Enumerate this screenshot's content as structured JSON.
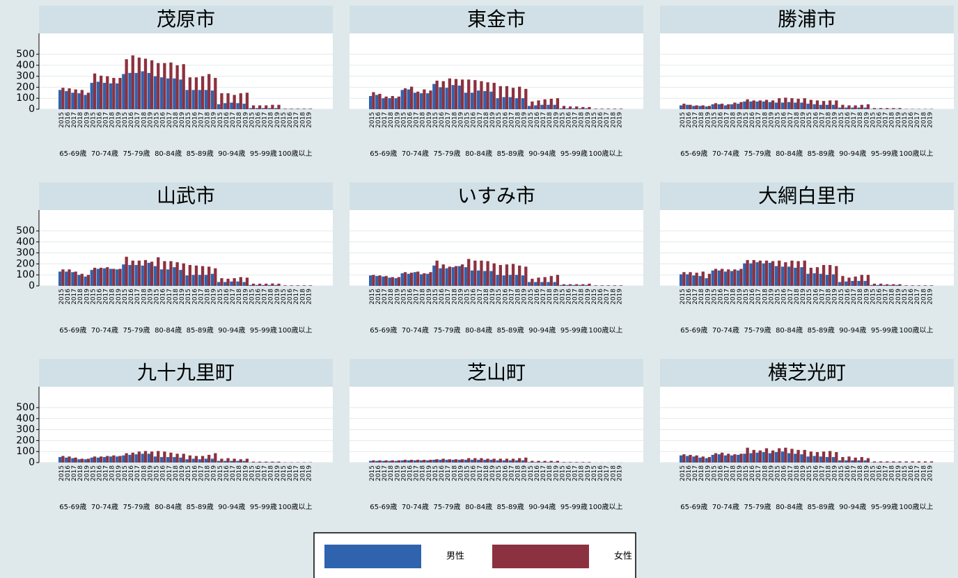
{
  "chart_data": [
    {
      "type": "bar",
      "title": "茂原市",
      "groups": [
        "65-69歳",
        "70-74歳",
        "75-79歳",
        "80-84歳",
        "85-89歳",
        "90-94歳",
        "95-99歳",
        "100歳以上"
      ],
      "years": [
        "2015",
        "2016",
        "2017",
        "2018",
        "2019"
      ],
      "ylim": [
        0,
        690
      ],
      "yticks": [
        0,
        100,
        200,
        300,
        400,
        500
      ],
      "series": [
        {
          "name": "男性",
          "color": "#2f63ad",
          "values": [
            175,
            165,
            150,
            145,
            130,
            240,
            250,
            240,
            235,
            235,
            320,
            330,
            330,
            345,
            330,
            300,
            290,
            280,
            280,
            270,
            175,
            175,
            175,
            175,
            170,
            45,
            55,
            60,
            55,
            50,
            10,
            10,
            10,
            10,
            10,
            2,
            2,
            2,
            2,
            2
          ]
        },
        {
          "name": "女性",
          "color": "#8c3140",
          "values": [
            195,
            190,
            180,
            175,
            150,
            325,
            305,
            300,
            285,
            285,
            455,
            490,
            470,
            460,
            445,
            420,
            420,
            425,
            400,
            410,
            290,
            290,
            300,
            320,
            285,
            145,
            145,
            130,
            145,
            150,
            35,
            35,
            35,
            40,
            40,
            5,
            5,
            5,
            5,
            5
          ]
        }
      ]
    },
    {
      "type": "bar",
      "title": "東金市",
      "groups": [
        "65-69歳",
        "70-74歳",
        "75-79歳",
        "80-84歳",
        "85-89歳",
        "90-94歳",
        "95-99歳",
        "100歳以上"
      ],
      "years": [
        "2015",
        "2016",
        "2017",
        "2018",
        "2019"
      ],
      "ylim": [
        0,
        690
      ],
      "yticks": [
        0,
        100,
        200,
        300,
        400,
        500
      ],
      "series": [
        {
          "name": "男性",
          "color": "#2f63ad",
          "values": [
            120,
            130,
            100,
            100,
            100,
            175,
            180,
            150,
            145,
            145,
            230,
            200,
            195,
            220,
            215,
            150,
            150,
            170,
            165,
            160,
            100,
            110,
            110,
            100,
            100,
            30,
            35,
            40,
            40,
            40,
            8,
            8,
            8,
            8,
            8,
            1,
            1,
            1,
            1,
            1
          ]
        },
        {
          "name": "女性",
          "color": "#8c3140",
          "values": [
            155,
            140,
            115,
            120,
            115,
            190,
            205,
            160,
            180,
            170,
            260,
            255,
            280,
            275,
            270,
            270,
            265,
            255,
            245,
            240,
            210,
            210,
            195,
            205,
            185,
            70,
            80,
            90,
            95,
            100,
            30,
            25,
            25,
            20,
            20,
            5,
            5,
            5,
            5,
            5
          ]
        }
      ]
    },
    {
      "type": "bar",
      "title": "勝浦市",
      "groups": [
        "65-69歳",
        "70-74歳",
        "75-79歳",
        "80-84歳",
        "85-89歳",
        "90-94歳",
        "95-99歳",
        "100歳以上"
      ],
      "years": [
        "2015",
        "2016",
        "2017",
        "2018",
        "2019"
      ],
      "ylim": [
        0,
        690
      ],
      "yticks": [
        0,
        100,
        200,
        300,
        400,
        500
      ],
      "series": [
        {
          "name": "男性",
          "color": "#2f63ad",
          "values": [
            35,
            40,
            30,
            30,
            25,
            45,
            45,
            35,
            45,
            50,
            70,
            70,
            70,
            70,
            65,
            60,
            60,
            65,
            60,
            60,
            50,
            45,
            40,
            40,
            40,
            15,
            15,
            15,
            15,
            15,
            3,
            3,
            3,
            3,
            3,
            1,
            1,
            1,
            1,
            1
          ]
        },
        {
          "name": "女性",
          "color": "#8c3140",
          "values": [
            50,
            40,
            35,
            35,
            30,
            55,
            50,
            45,
            60,
            65,
            90,
            80,
            80,
            85,
            80,
            100,
            105,
            100,
            95,
            100,
            85,
            80,
            75,
            80,
            80,
            40,
            35,
            35,
            40,
            45,
            10,
            10,
            10,
            10,
            10,
            3,
            3,
            3,
            3,
            3
          ]
        }
      ]
    },
    {
      "type": "bar",
      "title": "山武市",
      "groups": [
        "65-69歳",
        "70-74歳",
        "75-79歳",
        "80-84歳",
        "85-89歳",
        "90-94歳",
        "95-99歳",
        "100歳以上"
      ],
      "years": [
        "2015",
        "2016",
        "2017",
        "2018",
        "2019"
      ],
      "ylim": [
        0,
        690
      ],
      "yticks": [
        0,
        100,
        200,
        300,
        400,
        500
      ],
      "series": [
        {
          "name": "男性",
          "color": "#2f63ad",
          "values": [
            130,
            130,
            125,
            100,
            85,
            145,
            155,
            160,
            155,
            150,
            195,
            190,
            190,
            185,
            210,
            180,
            150,
            150,
            170,
            145,
            95,
            100,
            100,
            100,
            110,
            35,
            35,
            40,
            40,
            35,
            8,
            8,
            8,
            8,
            8,
            1,
            1,
            1,
            1,
            1
          ]
        },
        {
          "name": "女性",
          "color": "#8c3140",
          "values": [
            150,
            150,
            130,
            110,
            100,
            165,
            165,
            170,
            155,
            155,
            265,
            230,
            230,
            235,
            220,
            260,
            225,
            225,
            215,
            205,
            190,
            185,
            180,
            175,
            160,
            70,
            65,
            70,
            80,
            75,
            20,
            20,
            20,
            22,
            20,
            5,
            5,
            5,
            5,
            5
          ]
        }
      ]
    },
    {
      "type": "bar",
      "title": "いすみ市",
      "groups": [
        "65-69歳",
        "70-74歳",
        "75-79歳",
        "80-84歳",
        "85-89歳",
        "90-94歳",
        "95-99歳",
        "100歳以上"
      ],
      "years": [
        "2015",
        "2016",
        "2017",
        "2018",
        "2019"
      ],
      "ylim": [
        0,
        690
      ],
      "yticks": [
        0,
        100,
        200,
        300,
        400,
        500
      ],
      "series": [
        {
          "name": "男性",
          "color": "#2f63ad",
          "values": [
            95,
            90,
            85,
            75,
            70,
            115,
            110,
            125,
            105,
            110,
            185,
            160,
            160,
            170,
            180,
            170,
            140,
            140,
            135,
            135,
            100,
            95,
            100,
            100,
            95,
            35,
            35,
            35,
            35,
            35,
            8,
            8,
            8,
            8,
            8,
            1,
            1,
            1,
            1,
            1
          ]
        },
        {
          "name": "女性",
          "color": "#8c3140",
          "values": [
            100,
            95,
            90,
            80,
            80,
            125,
            120,
            130,
            115,
            125,
            230,
            195,
            175,
            180,
            195,
            245,
            230,
            230,
            225,
            205,
            190,
            195,
            200,
            185,
            175,
            65,
            75,
            80,
            90,
            100,
            15,
            15,
            15,
            15,
            20,
            5,
            5,
            5,
            5,
            5
          ]
        }
      ]
    },
    {
      "type": "bar",
      "title": "大網白里市",
      "groups": [
        "65-69歳",
        "70-74歳",
        "75-79歳",
        "80-84歳",
        "85-89歳",
        "90-94歳",
        "95-99歳",
        "100歳以上"
      ],
      "years": [
        "2015",
        "2016",
        "2017",
        "2018",
        "2019"
      ],
      "ylim": [
        0,
        690
      ],
      "yticks": [
        0,
        100,
        200,
        300,
        400,
        500
      ],
      "series": [
        {
          "name": "男性",
          "color": "#2f63ad",
          "values": [
            105,
            105,
            95,
            90,
            70,
            140,
            140,
            130,
            135,
            140,
            205,
            205,
            215,
            205,
            210,
            180,
            175,
            175,
            165,
            170,
            110,
            115,
            110,
            100,
            105,
            35,
            40,
            45,
            45,
            45,
            8,
            8,
            8,
            8,
            8,
            1,
            1,
            1,
            1,
            1
          ]
        },
        {
          "name": "女性",
          "color": "#8c3140",
          "values": [
            125,
            125,
            120,
            130,
            110,
            155,
            155,
            150,
            150,
            155,
            235,
            235,
            230,
            230,
            225,
            230,
            215,
            230,
            225,
            230,
            165,
            170,
            190,
            190,
            180,
            90,
            75,
            85,
            100,
            100,
            20,
            20,
            15,
            15,
            15,
            5,
            5,
            5,
            5,
            5
          ]
        }
      ]
    },
    {
      "type": "bar",
      "title": "九十九里町",
      "groups": [
        "65-69歳",
        "70-74歳",
        "75-79歳",
        "80-84歳",
        "85-89歳",
        "90-94歳",
        "95-99歳",
        "100歳以上"
      ],
      "years": [
        "2015",
        "2016",
        "2017",
        "2018",
        "2019"
      ],
      "ylim": [
        0,
        690
      ],
      "yticks": [
        0,
        100,
        200,
        300,
        400,
        500
      ],
      "series": [
        {
          "name": "男性",
          "color": "#2f63ad",
          "values": [
            50,
            45,
            40,
            30,
            30,
            45,
            45,
            50,
            55,
            55,
            65,
            70,
            75,
            80,
            80,
            55,
            50,
            50,
            50,
            45,
            30,
            35,
            30,
            35,
            35,
            15,
            15,
            15,
            15,
            15,
            3,
            3,
            3,
            3,
            3,
            1,
            1,
            1,
            1,
            1
          ]
        },
        {
          "name": "女性",
          "color": "#8c3140",
          "values": [
            60,
            55,
            45,
            35,
            35,
            55,
            55,
            60,
            65,
            60,
            85,
            90,
            100,
            105,
            100,
            105,
            100,
            90,
            80,
            80,
            65,
            60,
            60,
            70,
            85,
            35,
            40,
            35,
            30,
            35,
            8,
            8,
            8,
            8,
            8,
            3,
            3,
            3,
            3,
            3
          ]
        }
      ]
    },
    {
      "type": "bar",
      "title": "芝山町",
      "groups": [
        "65-69歳",
        "70-74歳",
        "75-79歳",
        "80-84歳",
        "85-89歳",
        "90-94歳",
        "95-99歳",
        "100歳以上"
      ],
      "years": [
        "2015",
        "2016",
        "2017",
        "2018",
        "2019"
      ],
      "ylim": [
        0,
        690
      ],
      "yticks": [
        0,
        100,
        200,
        300,
        400,
        500
      ],
      "series": [
        {
          "name": "男性",
          "color": "#2f63ad",
          "values": [
            15,
            15,
            15,
            15,
            15,
            20,
            20,
            20,
            20,
            20,
            25,
            25,
            25,
            25,
            25,
            25,
            25,
            25,
            25,
            25,
            20,
            20,
            20,
            20,
            20,
            5,
            5,
            5,
            5,
            5,
            2,
            2,
            2,
            2,
            2,
            0,
            0,
            0,
            0,
            0
          ]
        },
        {
          "name": "女性",
          "color": "#8c3140",
          "values": [
            20,
            20,
            20,
            20,
            20,
            25,
            25,
            25,
            25,
            25,
            30,
            35,
            30,
            30,
            30,
            40,
            40,
            40,
            35,
            35,
            35,
            35,
            35,
            40,
            45,
            15,
            15,
            15,
            15,
            15,
            5,
            5,
            5,
            5,
            5,
            1,
            1,
            1,
            1,
            1
          ]
        }
      ]
    },
    {
      "type": "bar",
      "title": "横芝光町",
      "groups": [
        "65-69歳",
        "70-74歳",
        "75-79歳",
        "80-84歳",
        "85-89歳",
        "90-94歳",
        "95-99歳",
        "100歳以上"
      ],
      "years": [
        "2015",
        "2016",
        "2017",
        "2018",
        "2019"
      ],
      "ylim": [
        0,
        690
      ],
      "yticks": [
        0,
        100,
        200,
        300,
        400,
        500
      ],
      "series": [
        {
          "name": "男性",
          "color": "#2f63ad",
          "values": [
            65,
            60,
            55,
            45,
            40,
            70,
            75,
            65,
            65,
            70,
            80,
            85,
            90,
            95,
            85,
            95,
            100,
            85,
            80,
            75,
            55,
            60,
            55,
            50,
            50,
            20,
            20,
            20,
            20,
            20,
            3,
            3,
            3,
            3,
            3,
            1,
            1,
            1,
            1,
            1
          ]
        },
        {
          "name": "女性",
          "color": "#8c3140",
          "values": [
            75,
            70,
            65,
            55,
            50,
            85,
            90,
            80,
            75,
            80,
            135,
            115,
            110,
            130,
            110,
            130,
            135,
            125,
            115,
            115,
            100,
            95,
            100,
            105,
            95,
            50,
            55,
            45,
            50,
            40,
            10,
            10,
            10,
            10,
            10,
            10,
            10,
            10,
            10,
            10
          ]
        }
      ]
    }
  ]
}
